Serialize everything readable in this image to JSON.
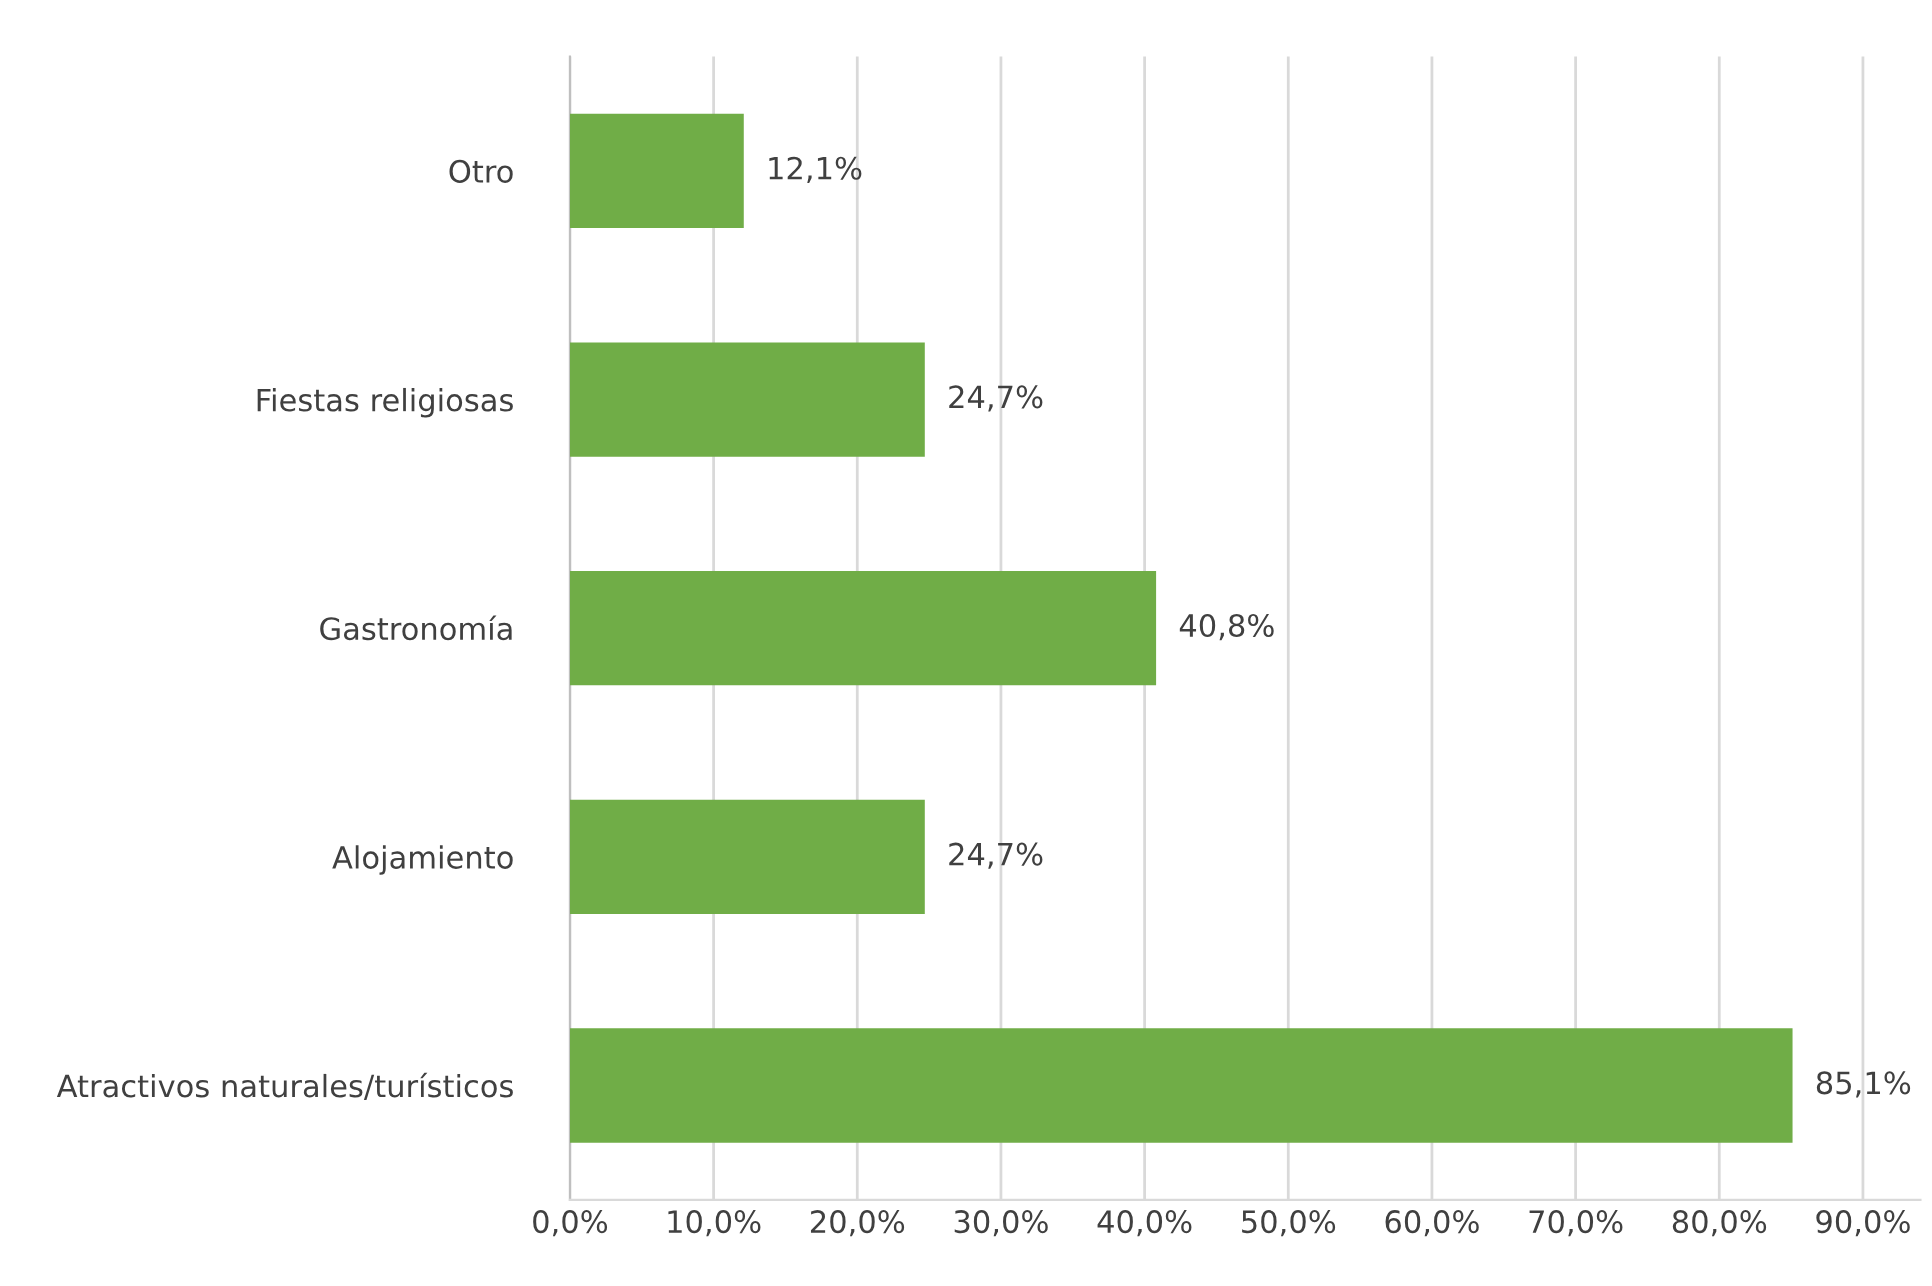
{
  "chart_data": {
    "type": "bar",
    "orientation": "horizontal",
    "categories": [
      "Otro",
      "Fiestas religiosas",
      "Gastronomía",
      "Alojamiento",
      "Atractivos naturales/turísticos"
    ],
    "values": [
      12.1,
      24.7,
      40.8,
      24.7,
      85.1
    ],
    "value_labels": [
      "12,1%",
      "24,7%",
      "40,8%",
      "24,7%",
      "85,1%"
    ],
    "color": "#70ad47",
    "xlim": [
      0,
      94
    ],
    "xticks": [
      {
        "value": 0,
        "label": "0,0%"
      },
      {
        "value": 10,
        "label": "10,0%"
      },
      {
        "value": 20,
        "label": "20,0%"
      },
      {
        "value": 30,
        "label": "30,0%"
      },
      {
        "value": 40,
        "label": "40,0%"
      },
      {
        "value": 50,
        "label": "50,0%"
      },
      {
        "value": 60,
        "label": "60,0%"
      },
      {
        "value": 70,
        "label": "70,0%"
      },
      {
        "value": 80,
        "label": "80,0%"
      },
      {
        "value": 90,
        "label": "90,0%"
      }
    ],
    "grid": "x"
  }
}
